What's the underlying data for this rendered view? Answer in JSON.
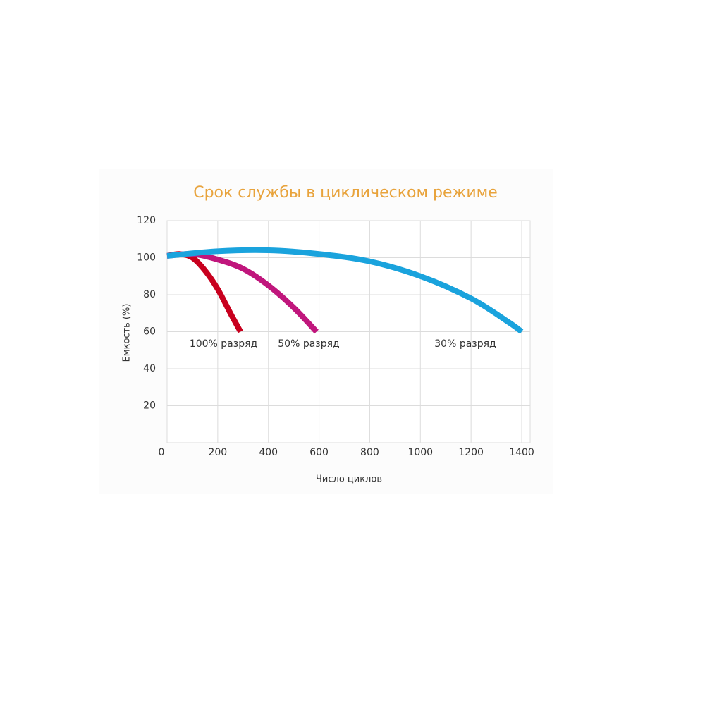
{
  "chart_data": {
    "type": "line",
    "title": "Срок службы в циклическом режиме",
    "x_label": "Число циклов",
    "y_label": "Емкость (%)",
    "xlim": [
      0,
      1400
    ],
    "xticks": [
      0,
      200,
      400,
      600,
      800,
      1000,
      1200,
      1400
    ],
    "ylim": [
      0,
      120
    ],
    "yticks": [
      20,
      40,
      60,
      80,
      100,
      120
    ],
    "grid": true,
    "series": [
      {
        "name": "100% разряд",
        "color": "#c8001e",
        "x": [
          0,
          50,
          100,
          150,
          200,
          250,
          290
        ],
        "values": [
          101,
          102,
          100,
          93,
          83,
          70,
          60
        ]
      },
      {
        "name": "50% разряд",
        "color": "#c0167c",
        "x": [
          0,
          100,
          200,
          300,
          400,
          500,
          590
        ],
        "values": [
          101,
          102,
          99,
          94,
          85,
          73,
          60
        ]
      },
      {
        "name": "30% разряд",
        "color": "#1aa3dd",
        "x": [
          0,
          200,
          400,
          600,
          800,
          1000,
          1200,
          1350,
          1400
        ],
        "values": [
          101,
          103.5,
          104,
          102,
          98,
          90,
          78,
          65,
          60
        ]
      }
    ]
  }
}
